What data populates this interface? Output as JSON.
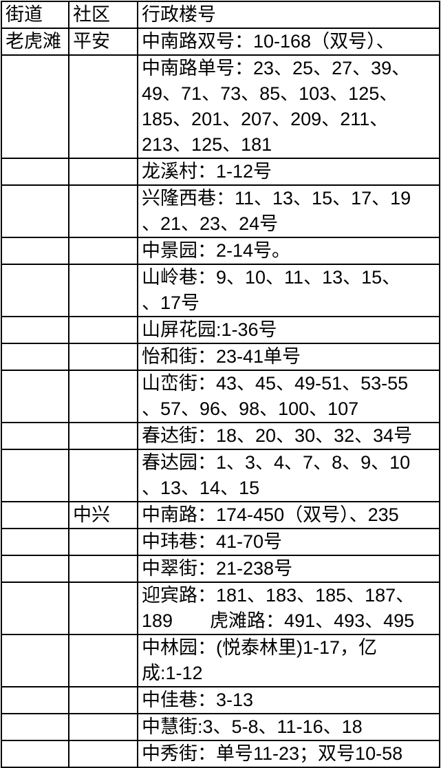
{
  "colors": {
    "background": "#ffffff",
    "border": "#000000",
    "text": "#000000"
  },
  "table": {
    "columns": [
      {
        "key": "street",
        "label": "街道"
      },
      {
        "key": "community",
        "label": "社区"
      },
      {
        "key": "buildings",
        "label": "行政楼号"
      }
    ],
    "rows": [
      {
        "street": "老虎滩",
        "community": "平安",
        "buildings": "中南路双号：10-168（双号）、"
      },
      {
        "street": "",
        "community": "",
        "buildings": "中南路单号：23、25、27、39、\n49、71、73、85、103、125、\n185、201、207、209、211、\n213、125、181"
      },
      {
        "street": "",
        "community": "",
        "buildings": "龙溪村：1-12号"
      },
      {
        "street": "",
        "community": "",
        "buildings": "兴隆西巷：11、13、15、17、19\n、21、23、24号"
      },
      {
        "street": "",
        "community": "",
        "buildings": "中景园：2-14号。"
      },
      {
        "street": "",
        "community": "",
        "buildings": "山岭巷：9、10、11、13、15、\n、17号"
      },
      {
        "street": "",
        "community": "",
        "buildings": "山屏花园:1-36号"
      },
      {
        "street": "",
        "community": "",
        "buildings": "怡和街：23-41单号"
      },
      {
        "street": "",
        "community": "",
        "buildings": "山峦街：43、45、49-51、53-55\n、57、96、98、100、107"
      },
      {
        "street": "",
        "community": "",
        "buildings": "春达街：18、20、30、32、34号"
      },
      {
        "street": "",
        "community": "",
        "buildings": "春达园：1、3、4、7、8、9、10\n、13、14、15"
      },
      {
        "street": "",
        "community": "中兴",
        "buildings": "中南路：174-450（双号）、235"
      },
      {
        "street": "",
        "community": "",
        "buildings": "中玮巷：41-70号"
      },
      {
        "street": "",
        "community": "",
        "buildings": "中翠街：21-238号"
      },
      {
        "street": "",
        "community": "",
        "buildings": "迎宾路：181、183、185、187、\n189　　虎滩路：491、493、495"
      },
      {
        "street": "",
        "community": "",
        "buildings": "中林园：(悦泰林里)1-17，亿\n成:1-12"
      },
      {
        "street": "",
        "community": "",
        "buildings": "中佳巷：3-13"
      },
      {
        "street": "",
        "community": "",
        "buildings": "中慧街:3、5-8、11-16、18"
      },
      {
        "street": "",
        "community": "",
        "buildings": "中秀街：单号11-23；双号10-58"
      }
    ]
  }
}
